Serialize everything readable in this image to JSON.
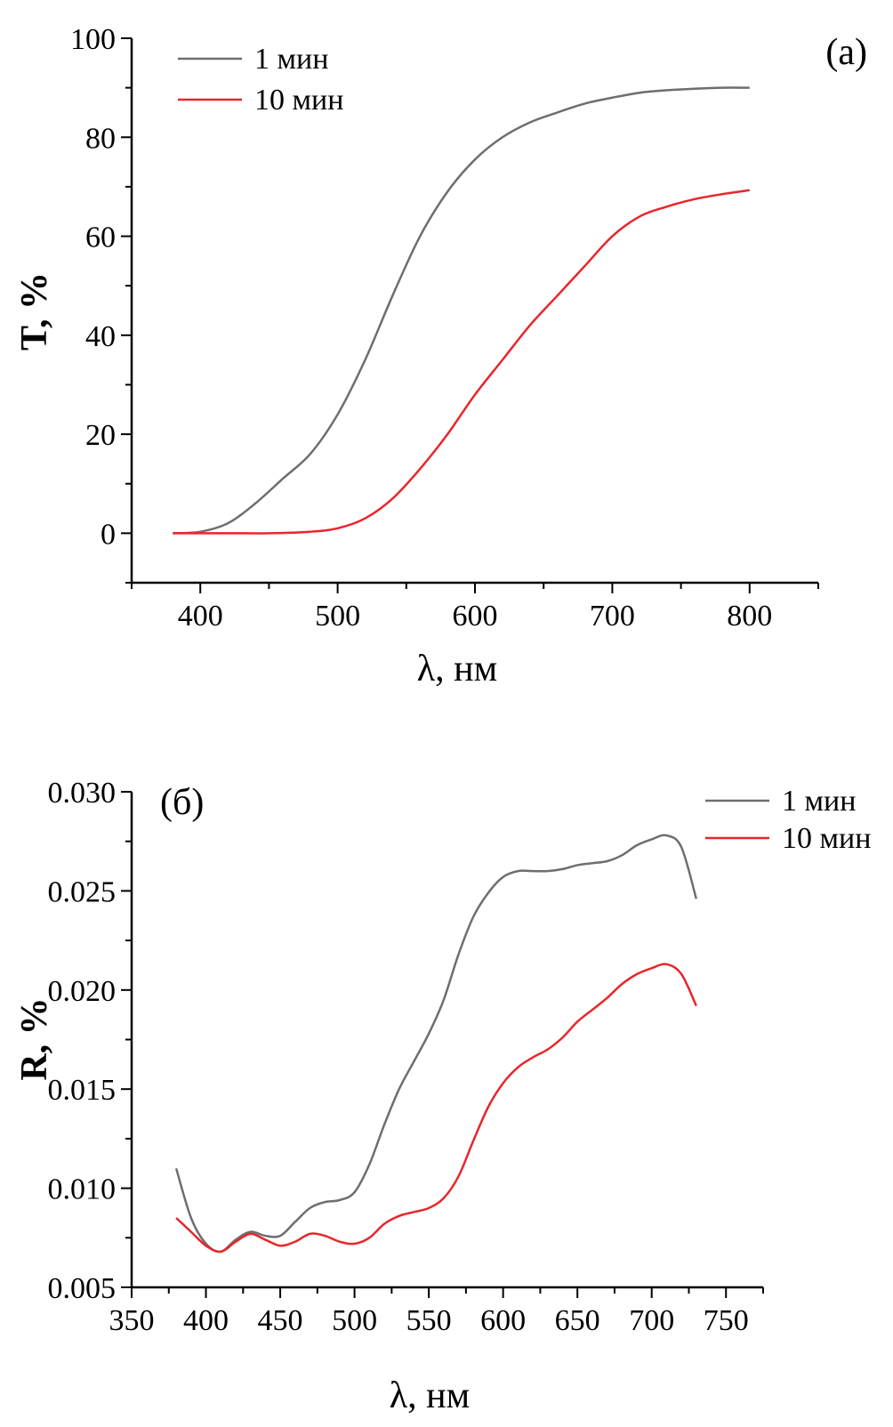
{
  "colors": {
    "gray": "#6e6e6e",
    "red": "#e8262b"
  },
  "chart_data": [
    {
      "type": "line",
      "panel_label": "(a)",
      "xlabel": "λ, нм",
      "ylabel": "T, %",
      "xlim": [
        350,
        850
      ],
      "ylim": [
        -10,
        100
      ],
      "xticks": [
        400,
        500,
        600,
        700,
        800
      ],
      "yticks": [
        0,
        20,
        40,
        60,
        80,
        100
      ],
      "grid": false,
      "legend": "top-left",
      "series": [
        {
          "name": "1 мин",
          "color": "#6e6e6e",
          "x": [
            380,
            400,
            420,
            440,
            460,
            480,
            500,
            520,
            540,
            560,
            580,
            600,
            620,
            640,
            660,
            680,
            700,
            720,
            740,
            760,
            780,
            800
          ],
          "y": [
            0,
            0.3,
            2,
            6,
            11,
            16,
            24,
            35,
            48,
            60,
            69,
            75.5,
            80,
            83,
            85,
            86.8,
            88,
            89,
            89.5,
            89.8,
            90,
            90
          ]
        },
        {
          "name": "10 мин",
          "color": "#e8262b",
          "x": [
            380,
            420,
            450,
            480,
            500,
            520,
            540,
            560,
            580,
            600,
            620,
            640,
            660,
            680,
            700,
            720,
            740,
            760,
            780,
            800
          ],
          "y": [
            0,
            0,
            0,
            0.3,
            1,
            3,
            7,
            13,
            20,
            28,
            35,
            42,
            48,
            54,
            60,
            64,
            66,
            67.5,
            68.5,
            69.3
          ]
        }
      ]
    },
    {
      "type": "line",
      "panel_label": "(б)",
      "xlabel": "λ, нм",
      "ylabel": "R, %",
      "xlim": [
        350,
        775
      ],
      "ylim": [
        0.005,
        0.03
      ],
      "xticks": [
        350,
        400,
        450,
        500,
        550,
        600,
        650,
        700,
        750
      ],
      "yticks": [
        "0.005",
        "0.010",
        "0.015",
        "0.020",
        "0.025",
        "0.030"
      ],
      "grid": false,
      "legend": "top-right",
      "series": [
        {
          "name": "1 мин",
          "color": "#6e6e6e",
          "x": [
            380,
            390,
            400,
            410,
            420,
            430,
            440,
            450,
            460,
            470,
            480,
            490,
            500,
            510,
            520,
            530,
            540,
            550,
            560,
            570,
            580,
            590,
            600,
            610,
            620,
            630,
            640,
            650,
            660,
            670,
            680,
            690,
            700,
            710,
            720,
            730
          ],
          "y": [
            0.011,
            0.0085,
            0.0072,
            0.0068,
            0.0074,
            0.0078,
            0.0076,
            0.0076,
            0.0083,
            0.009,
            0.0093,
            0.0094,
            0.0098,
            0.0112,
            0.0132,
            0.015,
            0.0164,
            0.0178,
            0.0195,
            0.0218,
            0.0237,
            0.0249,
            0.0257,
            0.026,
            0.026,
            0.026,
            0.0261,
            0.0263,
            0.0264,
            0.0265,
            0.0268,
            0.0273,
            0.0276,
            0.0278,
            0.0272,
            0.0246
          ]
        },
        {
          "name": "10 мин",
          "color": "#e8262b",
          "x": [
            380,
            390,
            400,
            410,
            420,
            430,
            440,
            450,
            460,
            470,
            480,
            490,
            500,
            510,
            520,
            530,
            540,
            550,
            560,
            570,
            580,
            590,
            600,
            610,
            620,
            630,
            640,
            650,
            660,
            670,
            680,
            690,
            700,
            710,
            720,
            730
          ],
          "y": [
            0.0085,
            0.0078,
            0.0071,
            0.0068,
            0.0073,
            0.0077,
            0.0074,
            0.0071,
            0.0073,
            0.0077,
            0.0076,
            0.0073,
            0.0072,
            0.0075,
            0.0082,
            0.0086,
            0.0088,
            0.009,
            0.0095,
            0.0106,
            0.0124,
            0.0141,
            0.0153,
            0.0161,
            0.0166,
            0.017,
            0.0176,
            0.0184,
            0.019,
            0.0196,
            0.0203,
            0.0208,
            0.0211,
            0.0213,
            0.0208,
            0.0192
          ]
        }
      ]
    }
  ]
}
